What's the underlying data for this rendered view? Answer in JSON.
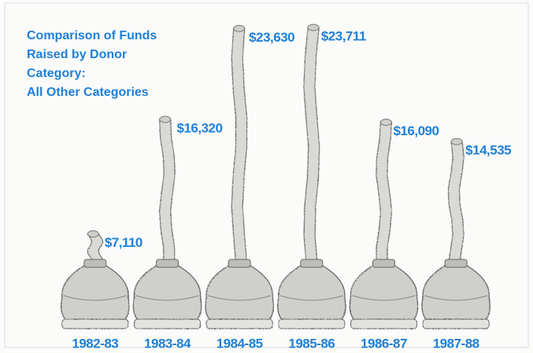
{
  "chart_data": {
    "type": "bar",
    "title": [
      "Comparison of Funds",
      "Raised by Donor",
      "Category:",
      "All Other Categories"
    ],
    "categories": [
      "1982-83",
      "1983-84",
      "1984-85",
      "1985-86",
      "1986-87",
      "1987-88"
    ],
    "values": [
      7110,
      16320,
      23630,
      23711,
      16090,
      14535
    ],
    "value_labels": [
      "$7,110",
      "$16,320",
      "$23,630",
      "$23,711",
      "$16,090",
      "$14,535"
    ],
    "color": "#1f80d6"
  }
}
